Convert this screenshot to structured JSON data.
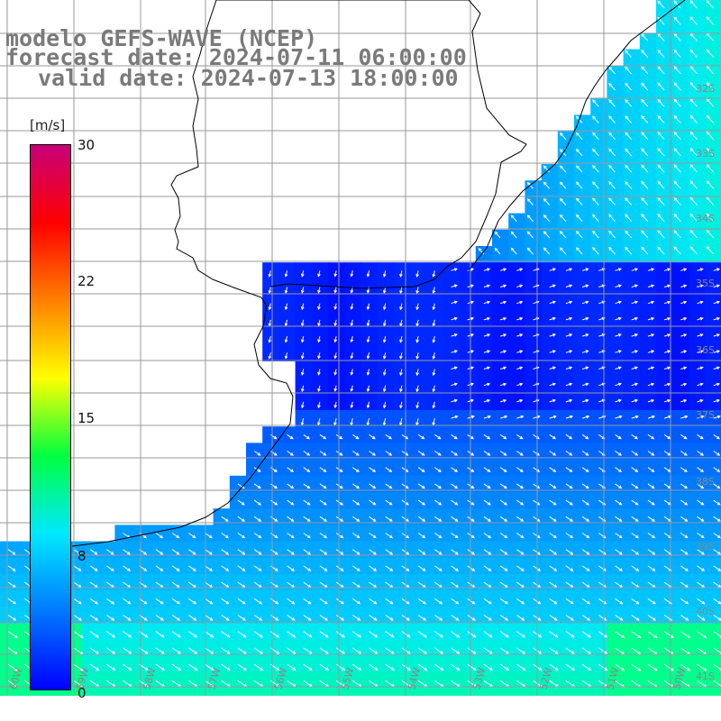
{
  "title": {
    "line1": "modelo GEFS-WAVE (NCEP)",
    "line2": "forecast date: 2024-07-11 06:00:00",
    "line3": "valid date: 2024-07-13 18:00:00"
  },
  "legend": {
    "unit": "[m/s]",
    "ticks": [
      "30",
      "22",
      "15",
      "8",
      "0"
    ],
    "tick_values": [
      30,
      22,
      15,
      8,
      0
    ],
    "range": [
      0,
      30
    ],
    "colors": [
      "#0000ff",
      "#0078ff",
      "#00e8ff",
      "#00ff40",
      "#ffff00",
      "#ff8000",
      "#ff0000",
      "#c80078"
    ]
  },
  "map": {
    "lat_labels": [
      "32S",
      "33S",
      "34S",
      "35S",
      "36S",
      "37S",
      "38S",
      "39S",
      "40S",
      "41S"
    ],
    "lon_labels": [
      "60W",
      "59W",
      "58W",
      "57W",
      "56W",
      "55W",
      "54W",
      "53W",
      "52W",
      "51W",
      "50W"
    ],
    "land_color": "#ffffff",
    "grid_color": "#9a9a9a"
  }
}
